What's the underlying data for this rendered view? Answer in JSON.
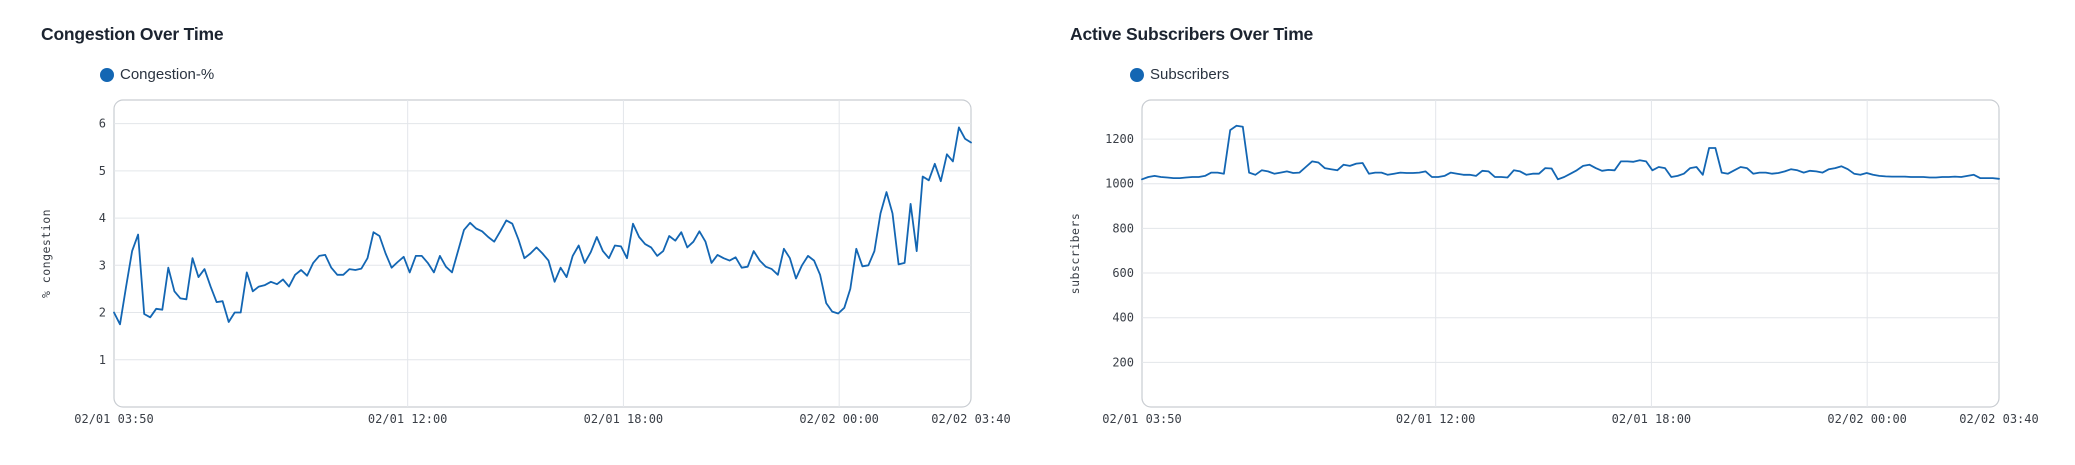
{
  "chart_data": [
    {
      "type": "line",
      "title": "Congestion Over Time",
      "xlabel": "",
      "ylabel": "% congestion",
      "x_tick_labels": [
        "02/01 03:50",
        "02/01 12:00",
        "02/01 18:00",
        "02/02 00:00",
        "02/02 03:40"
      ],
      "x_tick_hours": [
        0,
        8.167,
        14.167,
        20.167,
        23.833
      ],
      "x_range_hours": [
        0,
        23.833
      ],
      "ylim": [
        0,
        6.5
      ],
      "y_ticks": [
        1,
        2,
        3,
        4,
        5,
        6
      ],
      "grid": true,
      "legend_position": "top-left",
      "series": [
        {
          "name": "Congestion-%",
          "color": "#1366b3",
          "values": [
            2.0,
            1.75,
            2.55,
            3.3,
            3.65,
            1.97,
            1.9,
            2.08,
            2.06,
            2.95,
            2.45,
            2.3,
            2.28,
            3.15,
            2.75,
            2.92,
            2.55,
            2.22,
            2.24,
            1.8,
            2.0,
            2.0,
            2.85,
            2.45,
            2.55,
            2.58,
            2.65,
            2.6,
            2.7,
            2.55,
            2.8,
            2.9,
            2.78,
            3.05,
            3.2,
            3.22,
            2.95,
            2.8,
            2.8,
            2.92,
            2.9,
            2.93,
            3.15,
            3.7,
            3.62,
            3.25,
            2.95,
            3.07,
            3.18,
            2.85,
            3.2,
            3.2,
            3.05,
            2.85,
            3.2,
            2.97,
            2.85,
            3.3,
            3.75,
            3.9,
            3.78,
            3.72,
            3.6,
            3.5,
            3.72,
            3.95,
            3.88,
            3.55,
            3.15,
            3.25,
            3.38,
            3.25,
            3.1,
            2.65,
            2.95,
            2.75,
            3.2,
            3.42,
            3.05,
            3.28,
            3.6,
            3.3,
            3.15,
            3.42,
            3.4,
            3.15,
            3.88,
            3.6,
            3.45,
            3.38,
            3.2,
            3.3,
            3.62,
            3.52,
            3.7,
            3.38,
            3.5,
            3.72,
            3.5,
            3.05,
            3.22,
            3.15,
            3.1,
            3.17,
            2.95,
            2.97,
            3.3,
            3.1,
            2.97,
            2.92,
            2.8,
            3.35,
            3.15,
            2.72,
            3.0,
            3.2,
            3.1,
            2.8,
            2.2,
            2.02,
            1.98,
            2.1,
            2.5,
            3.35,
            2.98,
            3.0,
            3.3,
            4.1,
            4.55,
            4.1,
            3.02,
            3.05,
            4.3,
            3.3,
            4.88,
            4.8,
            5.15,
            4.78,
            5.35,
            5.2,
            5.92,
            5.68,
            5.6
          ]
        }
      ]
    },
    {
      "type": "line",
      "title": "Active Subscribers Over Time",
      "xlabel": "",
      "ylabel": "subscribers",
      "x_tick_labels": [
        "02/01 03:50",
        "02/01 12:00",
        "02/01 18:00",
        "02/02 00:00",
        "02/02 03:40"
      ],
      "x_tick_hours": [
        0,
        8.167,
        14.167,
        20.167,
        23.833
      ],
      "x_range_hours": [
        0,
        23.833
      ],
      "ylim": [
        0,
        1375
      ],
      "y_ticks": [
        200,
        400,
        600,
        800,
        1000,
        1200
      ],
      "grid": true,
      "legend_position": "top-left",
      "series": [
        {
          "name": "Subscribers",
          "color": "#1366b3",
          "values": [
            1020,
            1030,
            1035,
            1030,
            1028,
            1025,
            1025,
            1028,
            1030,
            1030,
            1035,
            1050,
            1050,
            1045,
            1240,
            1260,
            1255,
            1050,
            1040,
            1060,
            1055,
            1045,
            1050,
            1055,
            1048,
            1050,
            1075,
            1100,
            1095,
            1070,
            1065,
            1060,
            1085,
            1080,
            1090,
            1093,
            1045,
            1050,
            1050,
            1040,
            1045,
            1050,
            1048,
            1048,
            1050,
            1055,
            1030,
            1030,
            1035,
            1050,
            1045,
            1040,
            1040,
            1035,
            1058,
            1055,
            1030,
            1030,
            1028,
            1060,
            1055,
            1040,
            1045,
            1045,
            1070,
            1068,
            1020,
            1030,
            1045,
            1060,
            1080,
            1085,
            1070,
            1058,
            1062,
            1060,
            1100,
            1100,
            1098,
            1105,
            1100,
            1060,
            1075,
            1070,
            1030,
            1035,
            1045,
            1070,
            1075,
            1040,
            1160,
            1160,
            1050,
            1045,
            1060,
            1075,
            1070,
            1045,
            1050,
            1050,
            1045,
            1048,
            1055,
            1065,
            1060,
            1050,
            1058,
            1055,
            1050,
            1065,
            1070,
            1078,
            1065,
            1045,
            1040,
            1048,
            1040,
            1035,
            1033,
            1032,
            1032,
            1032,
            1030,
            1030,
            1030,
            1028,
            1028,
            1030,
            1030,
            1032,
            1030,
            1035,
            1040,
            1025,
            1025,
            1025,
            1022
          ]
        }
      ]
    }
  ]
}
